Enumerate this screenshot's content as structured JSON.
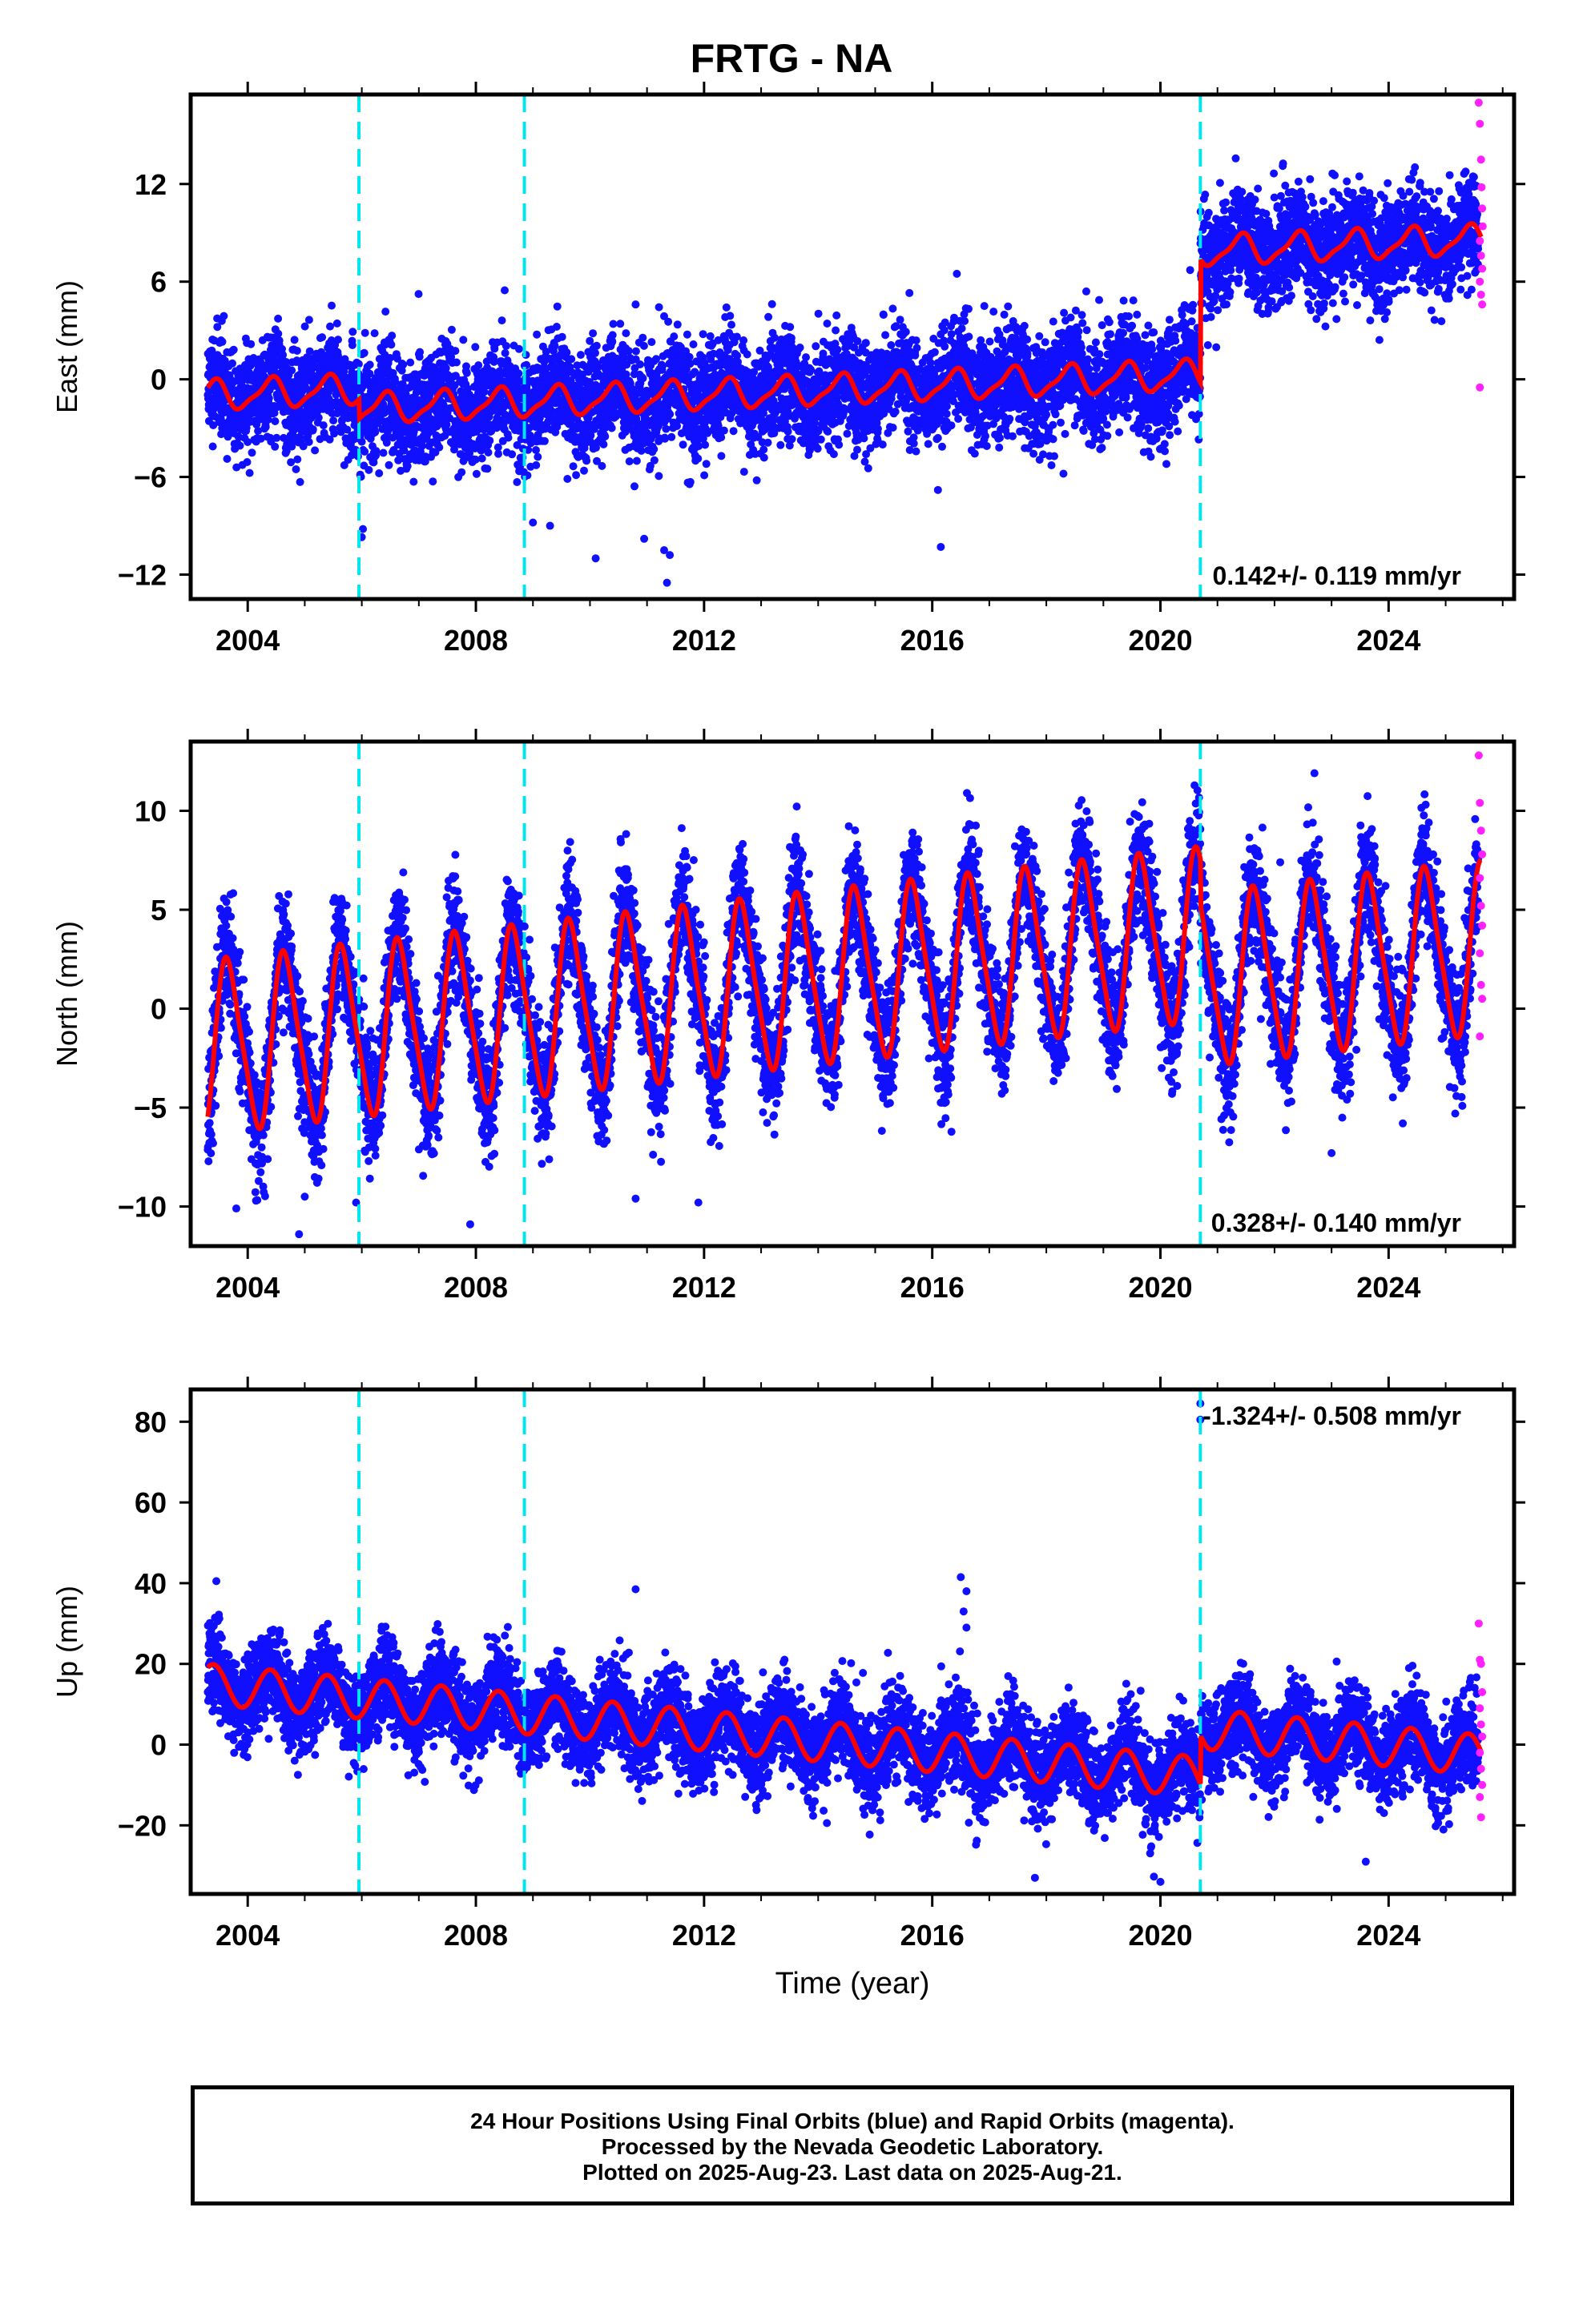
{
  "title": "FRTG - NA",
  "colors": {
    "final_orbit_points": "#1010ff",
    "rapid_orbit_points": "#ff20ff",
    "model_line": "#ff0000",
    "offset_lines": "#00e5ee",
    "axes": "#000000"
  },
  "chart_data": [
    {
      "type": "scatter",
      "panel": "east",
      "ylabel": "East (mm)",
      "xlabel": "",
      "xlim": [
        2003.0,
        2026.2
      ],
      "ylim": [
        -13.5,
        17.5
      ],
      "yticks": [
        -12,
        -6,
        0,
        6,
        12
      ],
      "ytick_labels": [
        "−12",
        "−6",
        "0",
        "6",
        "12"
      ],
      "xticks": [
        2004,
        2008,
        2012,
        2016,
        2020,
        2024
      ],
      "xtick_labels": [
        "2004",
        "2008",
        "2012",
        "2016",
        "2020",
        "2024"
      ],
      "rate_label": "0.142+/- 0.119 mm/yr",
      "offsets": [
        2005.95,
        2008.85,
        2020.7
      ],
      "model": {
        "start": 2003.3,
        "end": 2025.62,
        "intercept": -1.0,
        "rate": 0.142,
        "amp_cos": -0.7,
        "amp_sin": 0.5,
        "amp2_cos": 0.25,
        "amp2_sin": 0.0,
        "steps": [
          {
            "t": 2005.95,
            "dy": -1.2
          },
          {
            "t": 2020.7,
            "dy": 7.6
          }
        ]
      },
      "scatter": {
        "noise": 1.6,
        "seed": 11
      },
      "outliers": [
        [
          2006.0,
          -9.7
        ],
        [
          2006.02,
          -9.2
        ],
        [
          2009.0,
          -8.8
        ],
        [
          2009.3,
          -9.0
        ],
        [
          2010.1,
          -11.0
        ],
        [
          2010.95,
          -9.8
        ],
        [
          2011.3,
          -10.5
        ],
        [
          2011.35,
          -12.5
        ],
        [
          2011.4,
          -10.8
        ],
        [
          2016.15,
          -10.3
        ],
        [
          2016.1,
          -6.8
        ],
        [
          2018.3,
          -5.8
        ],
        [
          2010.8,
          4.6
        ],
        [
          2018.7,
          5.4
        ],
        [
          2015.6,
          5.3
        ]
      ],
      "rapid_points": [
        [
          2025.58,
          17.0
        ],
        [
          2025.6,
          15.7
        ],
        [
          2025.62,
          13.5
        ],
        [
          2025.63,
          11.8
        ],
        [
          2025.64,
          10.5
        ],
        [
          2025.65,
          9.4
        ],
        [
          2025.6,
          8.5
        ],
        [
          2025.62,
          7.6
        ],
        [
          2025.64,
          6.8
        ],
        [
          2025.6,
          6.0
        ],
        [
          2025.62,
          5.2
        ],
        [
          2025.64,
          4.6
        ],
        [
          2025.6,
          -0.5
        ]
      ]
    },
    {
      "type": "scatter",
      "panel": "north",
      "ylabel": "North (mm)",
      "xlabel": "",
      "xlim": [
        2003.0,
        2026.2
      ],
      "ylim": [
        -12.0,
        13.5
      ],
      "yticks": [
        -10,
        -5,
        0,
        5,
        10
      ],
      "ytick_labels": [
        "−10",
        "−5",
        "0",
        "5",
        "10"
      ],
      "xticks": [
        2004,
        2008,
        2012,
        2016,
        2020,
        2024
      ],
      "xtick_labels": [
        "2004",
        "2008",
        "2012",
        "2016",
        "2020",
        "2024"
      ],
      "rate_label": "0.328+/- 0.140 mm/yr",
      "offsets": [
        2005.95,
        2008.85,
        2020.7
      ],
      "model": {
        "start": 2003.3,
        "end": 2025.62,
        "intercept": -2.0,
        "rate": 0.328,
        "amp_cos": -2.2,
        "amp_sin": -3.6,
        "amp2_cos": 0.6,
        "amp2_sin": 0.4,
        "steps": [
          {
            "t": 2020.7,
            "dy": -2.3
          }
        ]
      },
      "scatter": {
        "noise": 1.5,
        "seed": 23
      },
      "outliers": [
        [
          2003.8,
          -10.1
        ],
        [
          2004.9,
          -11.4
        ],
        [
          2005.0,
          -9.5
        ],
        [
          2005.9,
          -9.8
        ],
        [
          2007.9,
          -10.9
        ],
        [
          2010.8,
          -9.6
        ],
        [
          2011.9,
          -9.8
        ],
        [
          2005.5,
          5.4
        ],
        [
          2008.6,
          5.7
        ],
        [
          2022.7,
          11.9
        ],
        [
          2022.1,
          7.4
        ],
        [
          2023.0,
          -7.3
        ]
      ],
      "rapid_points": [
        [
          2025.58,
          12.8
        ],
        [
          2025.6,
          10.4
        ],
        [
          2025.62,
          9.0
        ],
        [
          2025.64,
          7.8
        ],
        [
          2025.6,
          6.6
        ],
        [
          2025.62,
          5.2
        ],
        [
          2025.64,
          4.2
        ],
        [
          2025.6,
          2.8
        ],
        [
          2025.62,
          1.2
        ],
        [
          2025.64,
          0.5
        ],
        [
          2025.6,
          -1.4
        ]
      ]
    },
    {
      "type": "scatter",
      "panel": "up",
      "ylabel": "Up (mm)",
      "xlabel": "Time (year)",
      "xlim": [
        2003.0,
        2026.2
      ],
      "ylim": [
        -37.0,
        88.0
      ],
      "yticks": [
        -20,
        0,
        20,
        40,
        60,
        80
      ],
      "ytick_labels": [
        "−20",
        "0",
        "20",
        "40",
        "60",
        "80"
      ],
      "xticks": [
        2004,
        2008,
        2012,
        2016,
        2020,
        2024
      ],
      "xtick_labels": [
        "2004",
        "2008",
        "2012",
        "2016",
        "2020",
        "2024"
      ],
      "rate_label": "-1.324+/- 0.508 mm/yr",
      "offsets": [
        2005.95,
        2008.85,
        2020.7
      ],
      "model": {
        "start": 2003.3,
        "end": 2025.62,
        "intercept": 15.0,
        "rate": -1.324,
        "amp_cos": -4.0,
        "amp_sin": 3.0,
        "amp2_cos": 0.0,
        "amp2_sin": 0.0,
        "steps": [
          {
            "t": 2020.7,
            "dy": 12.0
          }
        ]
      },
      "scatter": {
        "noise": 5.5,
        "seed": 37
      },
      "outliers": [
        [
          2003.45,
          40.5
        ],
        [
          2010.8,
          38.5
        ],
        [
          2016.5,
          41.5
        ],
        [
          2016.6,
          38.0
        ],
        [
          2016.55,
          33.0
        ],
        [
          2016.6,
          29.0
        ],
        [
          2020.7,
          84.5
        ],
        [
          2020.7,
          80.5
        ],
        [
          2017.8,
          -33.0
        ],
        [
          2020.0,
          -34.0
        ],
        [
          2023.6,
          -29.0
        ]
      ],
      "rapid_points": [
        [
          2025.58,
          30.0
        ],
        [
          2025.6,
          21.0
        ],
        [
          2025.62,
          20.0
        ],
        [
          2025.64,
          13.0
        ],
        [
          2025.6,
          9.0
        ],
        [
          2025.62,
          5.0
        ],
        [
          2025.64,
          2.0
        ],
        [
          2025.6,
          -2.0
        ],
        [
          2025.62,
          -6.0
        ],
        [
          2025.64,
          -10.0
        ],
        [
          2025.6,
          -13.0
        ],
        [
          2025.62,
          -18.0
        ]
      ]
    }
  ],
  "caption": {
    "line1": "24 Hour Positions Using Final Orbits (blue) and Rapid Orbits (magenta).",
    "line2": "Processed by the Nevada Geodetic Laboratory.",
    "line3": "Plotted on 2025-Aug-23. Last data on 2025-Aug-21."
  }
}
